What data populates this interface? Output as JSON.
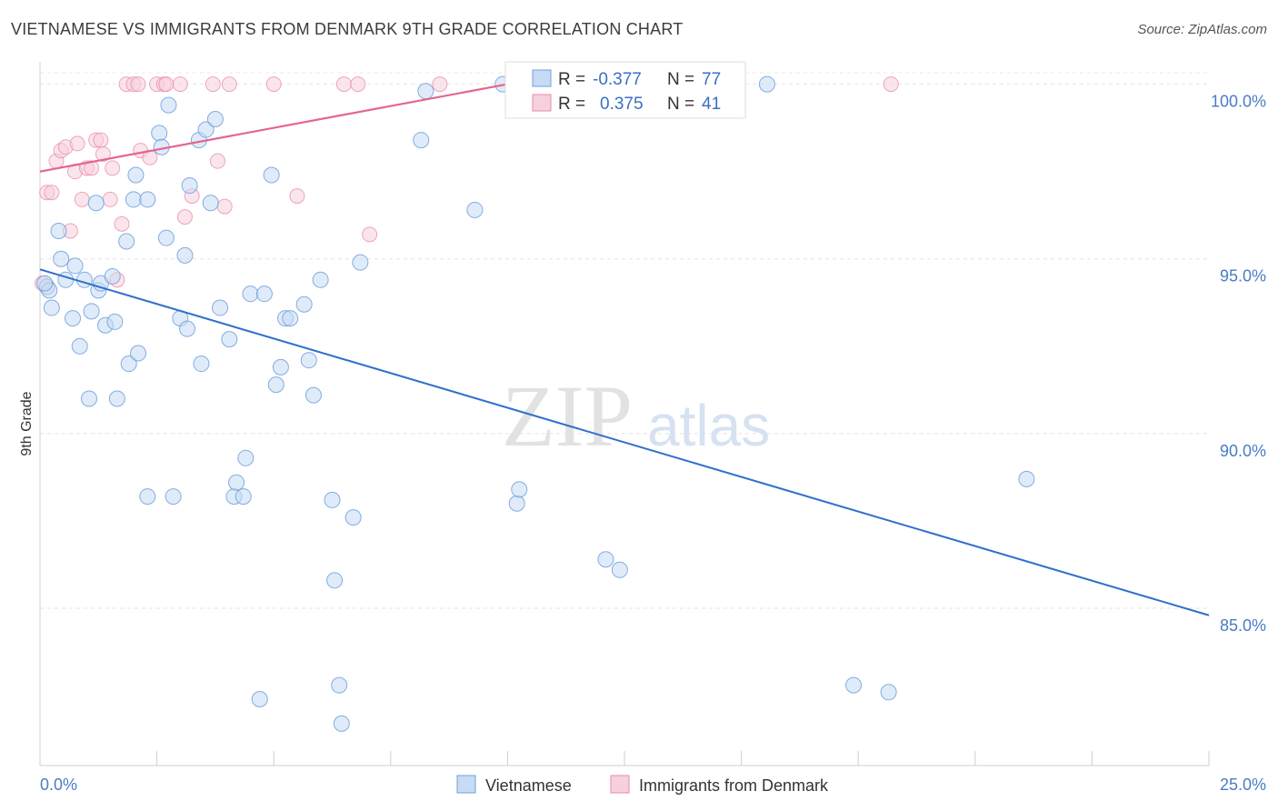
{
  "header": {
    "title": "VIETNAMESE VS IMMIGRANTS FROM DENMARK 9TH GRADE CORRELATION CHART",
    "source": "Source: ZipAtlas.com"
  },
  "watermark": {
    "part1": "ZIP",
    "part2": "atlas"
  },
  "colors": {
    "vietnamese": "#6fa0dc",
    "vietnamese_fill": "#c7dbf4",
    "denmark": "#e88aa8",
    "denmark_fill": "#f7d0dd",
    "blue_line": "#2f6fcc",
    "pink_line": "#e4658e"
  },
  "chart_data": {
    "type": "scatter",
    "title": "VIETNAMESE VS IMMIGRANTS FROM DENMARK 9TH GRADE CORRELATION CHART",
    "xlabel": "",
    "ylabel": "9th Grade",
    "xlim": [
      0,
      25
    ],
    "ylim": [
      80.5,
      100.9
    ],
    "x_tick_labels": [
      "0.0%",
      "25.0%"
    ],
    "y_ticks": [
      {
        "value": 85,
        "label": "85.0%"
      },
      {
        "value": 90,
        "label": "90.0%"
      },
      {
        "value": 95,
        "label": "95.0%"
      },
      {
        "value": 100,
        "label": "100.0%"
      }
    ],
    "grid": "horizontal dashed",
    "legend": {
      "placement": "top-center",
      "entries": [
        {
          "r_label": "R =",
          "r_value": "-0.377",
          "n_label": "N =",
          "n_value": "77"
        },
        {
          "r_label": "R =",
          "r_value": "0.375",
          "n_label": "N =",
          "n_value": "41"
        }
      ]
    },
    "bottom_legend": [
      "Vietnamese",
      "Immigrants from Denmark"
    ],
    "series": [
      {
        "name": "Vietnamese",
        "trend": [
          [
            0,
            94.7
          ],
          [
            25,
            84.8
          ]
        ],
        "points": [
          [
            0.15,
            94.2
          ],
          [
            0.25,
            93.6
          ],
          [
            0.4,
            95.8
          ],
          [
            0.45,
            95.0
          ],
          [
            0.55,
            94.4
          ],
          [
            0.7,
            93.3
          ],
          [
            0.75,
            94.8
          ],
          [
            0.85,
            92.5
          ],
          [
            0.95,
            94.4
          ],
          [
            1.05,
            91.0
          ],
          [
            1.1,
            93.5
          ],
          [
            1.2,
            96.6
          ],
          [
            1.25,
            94.1
          ],
          [
            1.3,
            94.3
          ],
          [
            1.4,
            93.1
          ],
          [
            1.55,
            94.5
          ],
          [
            1.6,
            93.2
          ],
          [
            1.65,
            91.0
          ],
          [
            1.85,
            95.5
          ],
          [
            1.9,
            92.0
          ],
          [
            2.0,
            96.7
          ],
          [
            2.05,
            97.4
          ],
          [
            2.1,
            92.3
          ],
          [
            2.3,
            96.7
          ],
          [
            2.3,
            88.2
          ],
          [
            2.55,
            98.6
          ],
          [
            2.6,
            98.2
          ],
          [
            2.7,
            95.6
          ],
          [
            2.75,
            99.4
          ],
          [
            2.85,
            88.2
          ],
          [
            3.0,
            93.3
          ],
          [
            3.1,
            95.1
          ],
          [
            3.15,
            93.0
          ],
          [
            3.2,
            97.1
          ],
          [
            3.4,
            98.4
          ],
          [
            3.45,
            92.0
          ],
          [
            3.55,
            98.7
          ],
          [
            3.65,
            96.6
          ],
          [
            3.75,
            99.0
          ],
          [
            3.85,
            93.6
          ],
          [
            4.05,
            92.7
          ],
          [
            4.15,
            88.2
          ],
          [
            4.2,
            88.6
          ],
          [
            4.35,
            88.2
          ],
          [
            4.4,
            89.3
          ],
          [
            4.5,
            94.0
          ],
          [
            4.7,
            82.4
          ],
          [
            4.8,
            94.0
          ],
          [
            4.95,
            97.4
          ],
          [
            5.05,
            91.4
          ],
          [
            5.15,
            91.9
          ],
          [
            5.25,
            93.3
          ],
          [
            5.35,
            93.3
          ],
          [
            5.65,
            93.7
          ],
          [
            5.75,
            92.1
          ],
          [
            5.85,
            91.1
          ],
          [
            6.0,
            94.4
          ],
          [
            6.25,
            88.1
          ],
          [
            6.3,
            85.8
          ],
          [
            6.4,
            82.8
          ],
          [
            6.45,
            81.7
          ],
          [
            6.7,
            87.6
          ],
          [
            6.85,
            94.9
          ],
          [
            8.15,
            98.4
          ],
          [
            8.25,
            99.8
          ],
          [
            9.3,
            96.4
          ],
          [
            9.9,
            100.0
          ],
          [
            10.2,
            88.0
          ],
          [
            10.25,
            88.4
          ],
          [
            12.1,
            86.4
          ],
          [
            12.4,
            86.1
          ],
          [
            15.55,
            100.0
          ],
          [
            17.4,
            82.8
          ],
          [
            18.15,
            82.6
          ],
          [
            21.1,
            88.7
          ],
          [
            0.2,
            94.1
          ],
          [
            0.1,
            94.3
          ]
        ]
      },
      {
        "name": "Immigrants from Denmark",
        "trend": [
          [
            0,
            97.5
          ],
          [
            10,
            100.0
          ]
        ],
        "points": [
          [
            0.05,
            94.3
          ],
          [
            0.15,
            96.9
          ],
          [
            0.25,
            96.9
          ],
          [
            0.35,
            97.8
          ],
          [
            0.45,
            98.1
          ],
          [
            0.55,
            98.2
          ],
          [
            0.65,
            95.8
          ],
          [
            0.75,
            97.5
          ],
          [
            0.8,
            98.3
          ],
          [
            0.9,
            96.7
          ],
          [
            1.0,
            97.6
          ],
          [
            1.1,
            97.6
          ],
          [
            1.2,
            98.4
          ],
          [
            1.3,
            98.4
          ],
          [
            1.35,
            98.0
          ],
          [
            1.5,
            96.7
          ],
          [
            1.55,
            97.6
          ],
          [
            1.65,
            94.4
          ],
          [
            1.75,
            96.0
          ],
          [
            1.85,
            100.0
          ],
          [
            2.0,
            100.0
          ],
          [
            2.1,
            100.0
          ],
          [
            2.15,
            98.1
          ],
          [
            2.35,
            97.9
          ],
          [
            2.5,
            100.0
          ],
          [
            2.65,
            100.0
          ],
          [
            2.7,
            100.0
          ],
          [
            3.0,
            100.0
          ],
          [
            3.1,
            96.2
          ],
          [
            3.25,
            96.8
          ],
          [
            3.7,
            100.0
          ],
          [
            3.8,
            97.8
          ],
          [
            3.95,
            96.5
          ],
          [
            4.05,
            100.0
          ],
          [
            5.0,
            100.0
          ],
          [
            5.5,
            96.8
          ],
          [
            6.5,
            100.0
          ],
          [
            6.8,
            100.0
          ],
          [
            7.05,
            95.7
          ],
          [
            8.55,
            100.0
          ],
          [
            18.2,
            100.0
          ]
        ]
      }
    ]
  }
}
